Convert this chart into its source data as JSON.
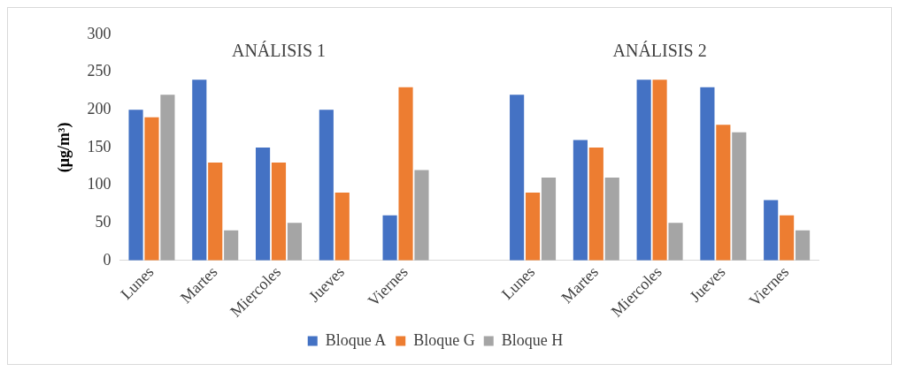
{
  "chart_data": {
    "type": "bar",
    "ylabel": "(μg/m³)",
    "categories": [
      "Lunes",
      "Martes",
      "Miercoles",
      "Jueves",
      "Viernes",
      null,
      "Lunes",
      "Martes",
      "Miercoles",
      "Jueves",
      "Viernes"
    ],
    "series": [
      {
        "name": "Bloque A",
        "color": "#4472c4",
        "values": [
          200,
          240,
          150,
          200,
          60,
          null,
          220,
          160,
          240,
          230,
          80
        ]
      },
      {
        "name": "Bloque G",
        "color": "#ed7d31",
        "values": [
          190,
          130,
          130,
          90,
          230,
          null,
          90,
          150,
          240,
          180,
          60
        ]
      },
      {
        "name": "Bloque H",
        "color": "#a5a5a5",
        "values": [
          220,
          40,
          50,
          null,
          120,
          null,
          110,
          110,
          50,
          170,
          40
        ]
      }
    ],
    "ylim": [
      0,
      300
    ],
    "yticks": [
      0,
      50,
      100,
      150,
      200,
      250,
      300
    ],
    "grid": false,
    "legend": "bottom",
    "annotations": [
      "ANÁLISIS 1",
      "ANÁLISIS 2"
    ]
  }
}
